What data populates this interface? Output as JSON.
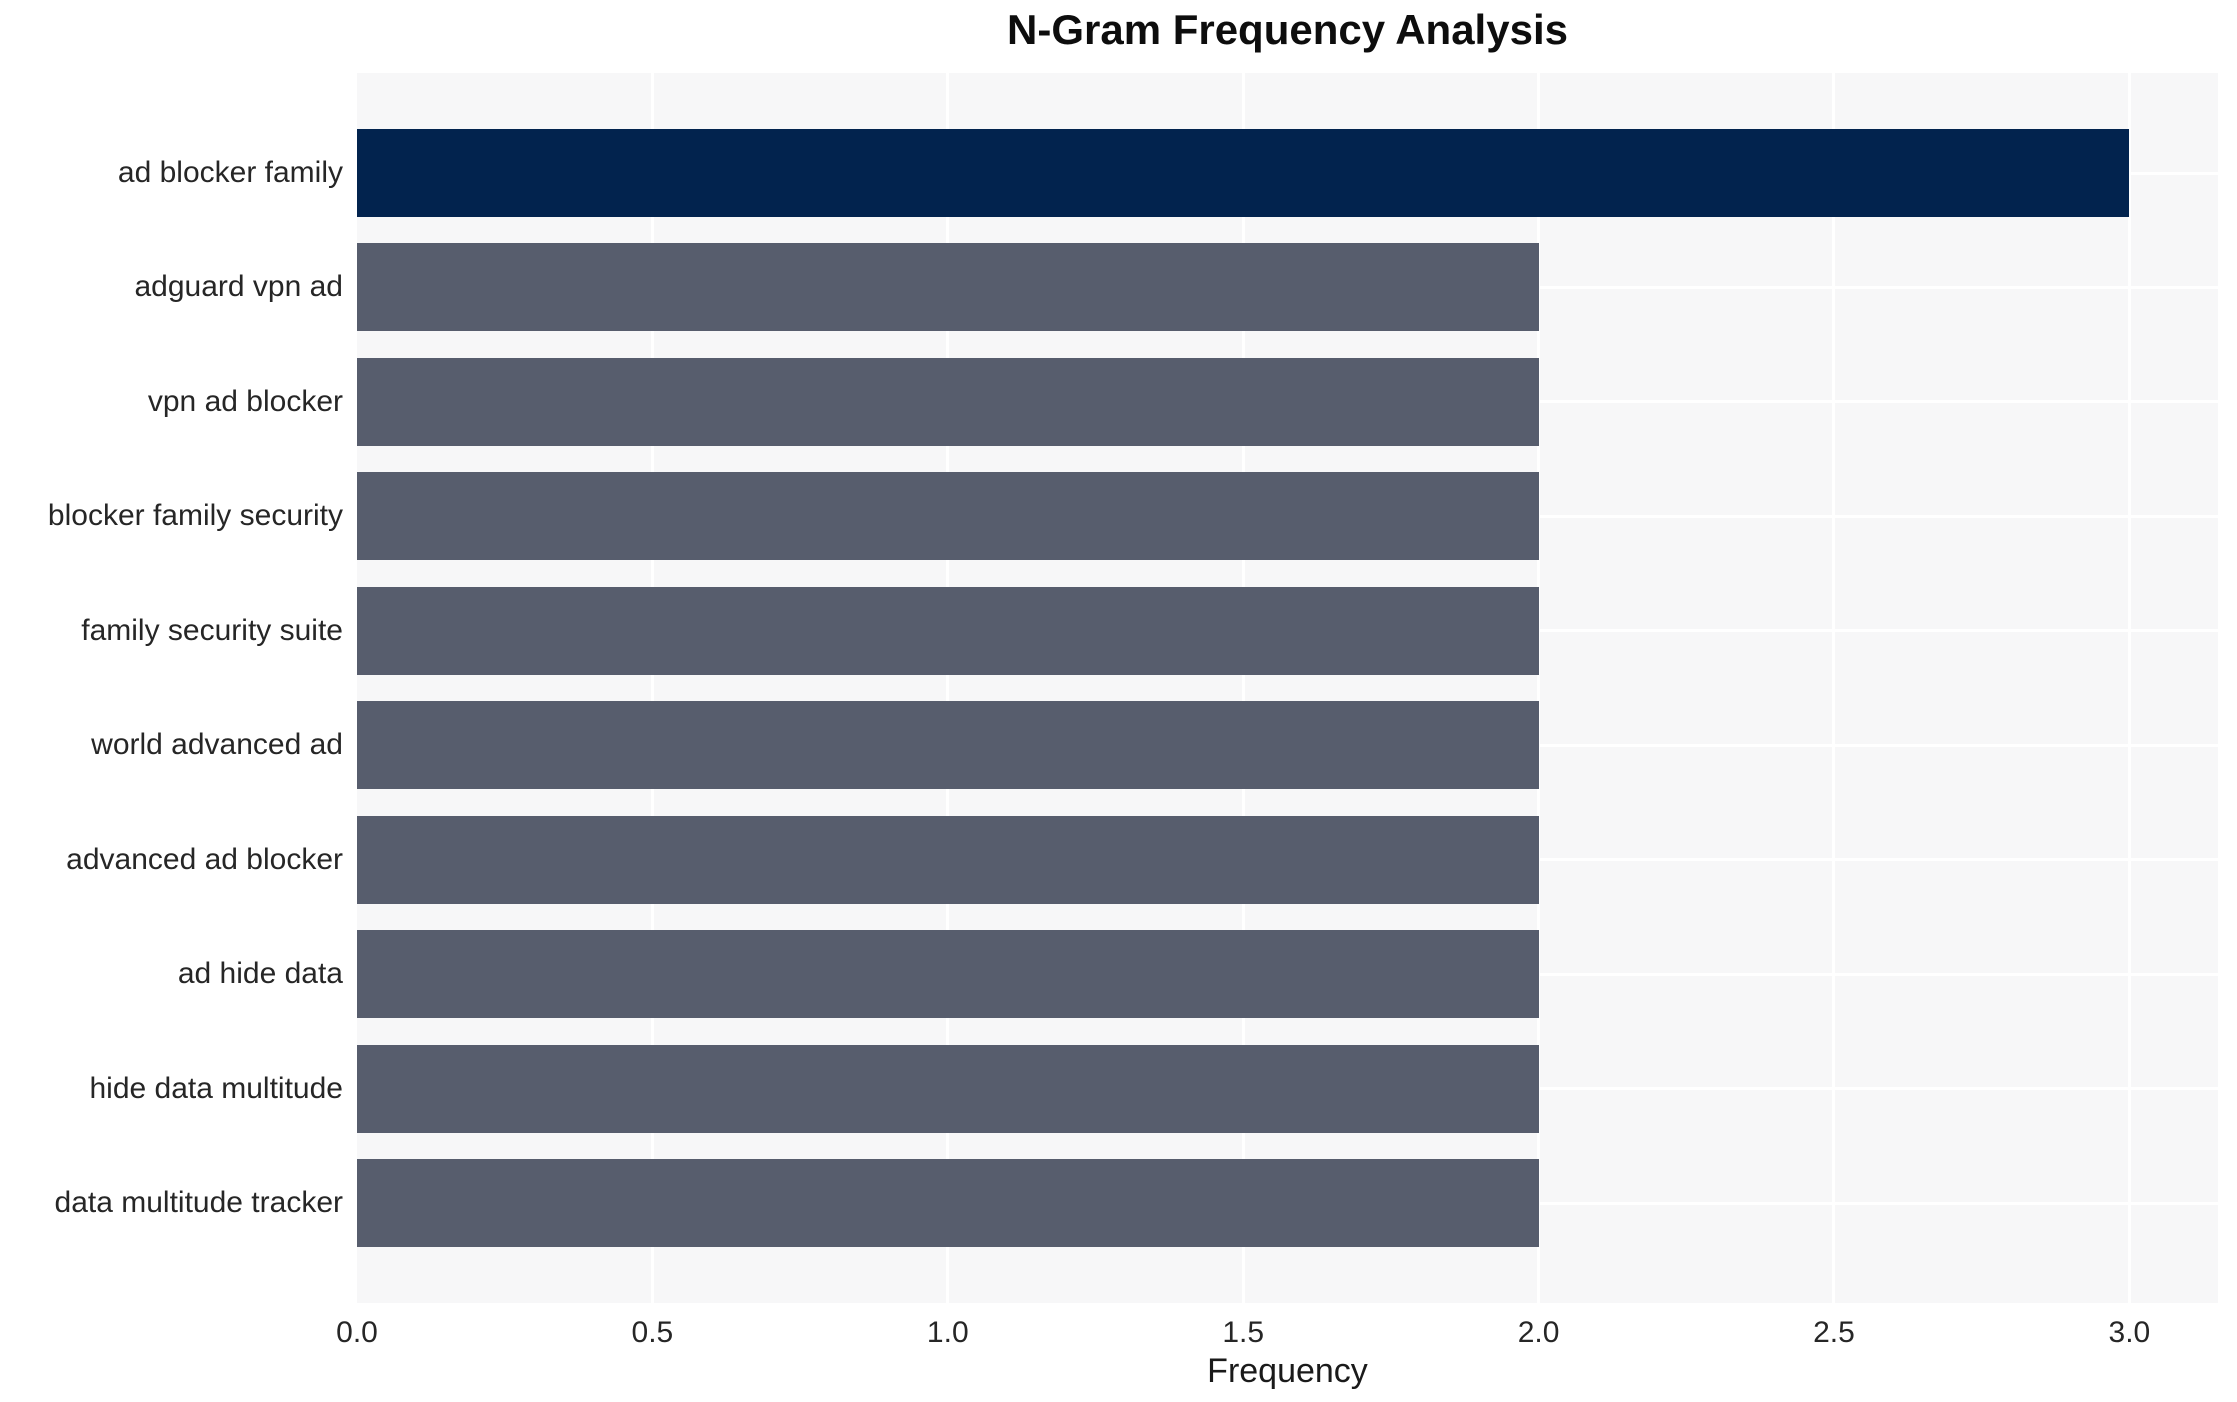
{
  "chart_data": {
    "type": "bar",
    "orientation": "horizontal",
    "title": "N-Gram Frequency Analysis",
    "xlabel": "Frequency",
    "ylabel": "",
    "categories": [
      "ad blocker family",
      "adguard vpn ad",
      "vpn ad blocker",
      "blocker family security",
      "family security suite",
      "world advanced ad",
      "advanced ad blocker",
      "ad hide data",
      "hide data multitude",
      "data multitude tracker"
    ],
    "values": [
      3,
      2,
      2,
      2,
      2,
      2,
      2,
      2,
      2,
      2
    ],
    "bar_colors": [
      "#02234E",
      "#575D6D",
      "#575D6D",
      "#575D6D",
      "#575D6D",
      "#575D6D",
      "#575D6D",
      "#575D6D",
      "#575D6D",
      "#575D6D"
    ],
    "xlim": [
      0,
      3.15
    ],
    "xticks": [
      0.0,
      0.5,
      1.0,
      1.5,
      2.0,
      2.5,
      3.0
    ],
    "xtick_labels": [
      "0.0",
      "0.5",
      "1.0",
      "1.5",
      "2.0",
      "2.5",
      "3.0"
    ],
    "grid": true,
    "legend": "none",
    "colors": {
      "highlight_bar": "#02234E",
      "default_bar": "#575D6D",
      "plot_background": "#F7F7F8",
      "grid_line": "#FFFFFF",
      "axis_text": "#262626",
      "title_text": "#0D0D0D",
      "page_background": "#FFFFFF"
    }
  }
}
